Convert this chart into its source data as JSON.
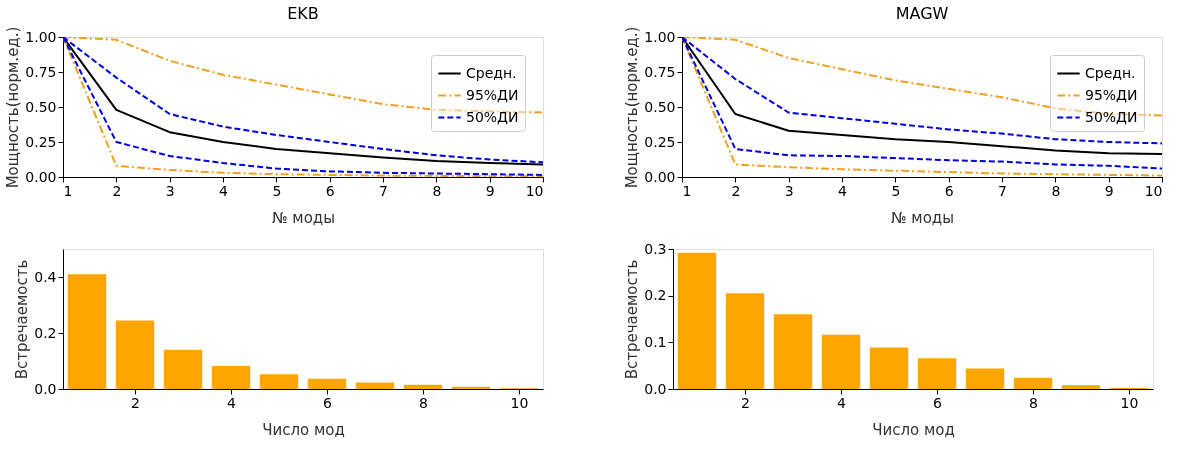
{
  "chart_data": [
    {
      "type": "line",
      "title": "EKB",
      "xlabel": "№ моды",
      "ylabel": "Мощность(норм.ед.)",
      "x": [
        1,
        2,
        3,
        4,
        5,
        6,
        7,
        8,
        9,
        10
      ],
      "xlim": [
        1,
        10
      ],
      "xticks": [
        1,
        2,
        3,
        4,
        5,
        6,
        7,
        8,
        9,
        10
      ],
      "ylim": [
        0,
        1
      ],
      "yticks": [
        {
          "value": 0,
          "label": "0.00"
        },
        0.25,
        {
          "value": 0.5,
          "label": "0.50"
        },
        0.75,
        {
          "value": 1,
          "label": "1.00"
        }
      ],
      "grid": false,
      "legend": "top right",
      "series": [
        {
          "name": "Средн.",
          "color": "#000000",
          "line_style": "solid",
          "values": [
            1,
            0.48,
            0.32,
            0.25,
            0.2,
            0.17,
            0.14,
            0.115,
            0.1,
            0.09
          ]
        },
        {
          "name": "95%ДИ",
          "color": "#f0a020",
          "line_style": "dashdot",
          "values": [
            1,
            0.98,
            0.83,
            0.73,
            0.66,
            0.59,
            0.52,
            0.48,
            0.47,
            0.46
          ]
        },
        {
          "color": "#f0a020",
          "line_style": "dashdot",
          "values": [
            1,
            0.08,
            0.05,
            0.03,
            0.02,
            0.015,
            0.01,
            0.008,
            0.006,
            0.005
          ]
        },
        {
          "name": "50%ДИ",
          "color": "#0000dd",
          "line_style": "dashed",
          "values": [
            1,
            0.71,
            0.45,
            0.36,
            0.3,
            0.25,
            0.2,
            0.155,
            0.125,
            0.105
          ]
        },
        {
          "color": "#0000dd",
          "line_style": "dashed",
          "values": [
            1,
            0.25,
            0.15,
            0.1,
            0.06,
            0.04,
            0.03,
            0.025,
            0.02,
            0.015
          ]
        }
      ]
    },
    {
      "type": "line",
      "title": "MAGW",
      "xlabel": "№ моды",
      "ylabel": "Мощность(норм.ед.)",
      "x": [
        1,
        2,
        3,
        4,
        5,
        6,
        7,
        8,
        9,
        10
      ],
      "xlim": [
        1,
        10
      ],
      "xticks": [
        1,
        2,
        3,
        4,
        5,
        6,
        7,
        8,
        9,
        10
      ],
      "ylim": [
        0,
        1
      ],
      "yticks": [
        {
          "value": 0,
          "label": "0.00"
        },
        0.25,
        {
          "value": 0.5,
          "label": "0.50"
        },
        0.75,
        {
          "value": 1,
          "label": "1.00"
        }
      ],
      "grid": false,
      "legend": "top right",
      "series": [
        {
          "name": "Средн.",
          "color": "#000000",
          "line_style": "solid",
          "values": [
            1,
            0.45,
            0.33,
            0.3,
            0.27,
            0.25,
            0.22,
            0.19,
            0.17,
            0.165
          ]
        },
        {
          "name": "95%ДИ",
          "color": "#f0a020",
          "line_style": "dashdot",
          "values": [
            1,
            0.98,
            0.85,
            0.77,
            0.69,
            0.63,
            0.57,
            0.49,
            0.45,
            0.44
          ]
        },
        {
          "color": "#f0a020",
          "line_style": "dashdot",
          "values": [
            1,
            0.09,
            0.07,
            0.055,
            0.045,
            0.035,
            0.025,
            0.02,
            0.015,
            0.01
          ]
        },
        {
          "name": "50%ДИ",
          "color": "#0000dd",
          "line_style": "dashed",
          "values": [
            1,
            0.7,
            0.46,
            0.42,
            0.38,
            0.34,
            0.31,
            0.27,
            0.25,
            0.24
          ]
        },
        {
          "color": "#0000dd",
          "line_style": "dashed",
          "values": [
            1,
            0.2,
            0.155,
            0.15,
            0.135,
            0.12,
            0.11,
            0.09,
            0.08,
            0.06
          ]
        }
      ]
    },
    {
      "type": "bar",
      "xlabel": "Число мод",
      "ylabel": "Встречаемость",
      "x": [
        1,
        2,
        3,
        4,
        5,
        6,
        7,
        8,
        9,
        10
      ],
      "xlim": [
        0.5,
        10.5
      ],
      "xticks": [
        2,
        4,
        6,
        8,
        10
      ],
      "ylim": [
        0,
        0.5
      ],
      "yticks": [
        {
          "value": 0,
          "label": "0.0"
        },
        0.2,
        0.4
      ],
      "grid": false,
      "color": "#ffa500",
      "values": [
        0.41,
        0.245,
        0.14,
        0.082,
        0.053,
        0.037,
        0.023,
        0.015,
        0.008,
        0.003
      ]
    },
    {
      "type": "bar",
      "xlabel": "Число мод",
      "ylabel": "Встречаемость",
      "x": [
        1,
        2,
        3,
        4,
        5,
        6,
        7,
        8,
        9,
        10
      ],
      "xlim": [
        0.5,
        10.5
      ],
      "xticks": [
        2,
        4,
        6,
        8,
        10
      ],
      "ylim": [
        0,
        0.3
      ],
      "yticks": [
        {
          "value": 0,
          "label": "0.0"
        },
        0.1,
        0.2,
        0.3
      ],
      "grid": false,
      "color": "#ffa500",
      "values": [
        0.292,
        0.205,
        0.16,
        0.116,
        0.089,
        0.066,
        0.044,
        0.024,
        0.008,
        0.002
      ]
    }
  ]
}
